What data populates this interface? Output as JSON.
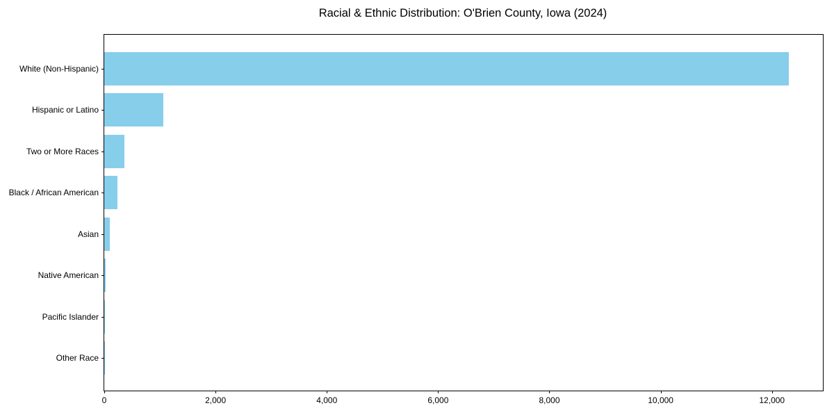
{
  "title": "Racial & Ethnic Distribution: O'Brien County, Iowa (2024)",
  "chart_data": {
    "type": "bar",
    "orientation": "horizontal",
    "title": "Racial & Ethnic Distribution: O'Brien County, Iowa (2024)",
    "categories": [
      "White (Non-Hispanic)",
      "Hispanic or Latino",
      "Two or More Races",
      "Black / African American",
      "Asian",
      "Native American",
      "Pacific Islander",
      "Other Race"
    ],
    "values": [
      12300,
      1060,
      360,
      240,
      100,
      25,
      15,
      10
    ],
    "xlabel": "",
    "ylabel": "",
    "xlim": [
      0,
      12915
    ],
    "x_ticks": [
      0,
      2000,
      4000,
      6000,
      8000,
      10000,
      12000
    ],
    "x_tick_labels": [
      "0",
      "2,000",
      "4,000",
      "6,000",
      "8,000",
      "10,000",
      "12,000"
    ],
    "bar_color": "#87CEEB",
    "axis_color": "#000000",
    "grid": false,
    "legend": null
  }
}
